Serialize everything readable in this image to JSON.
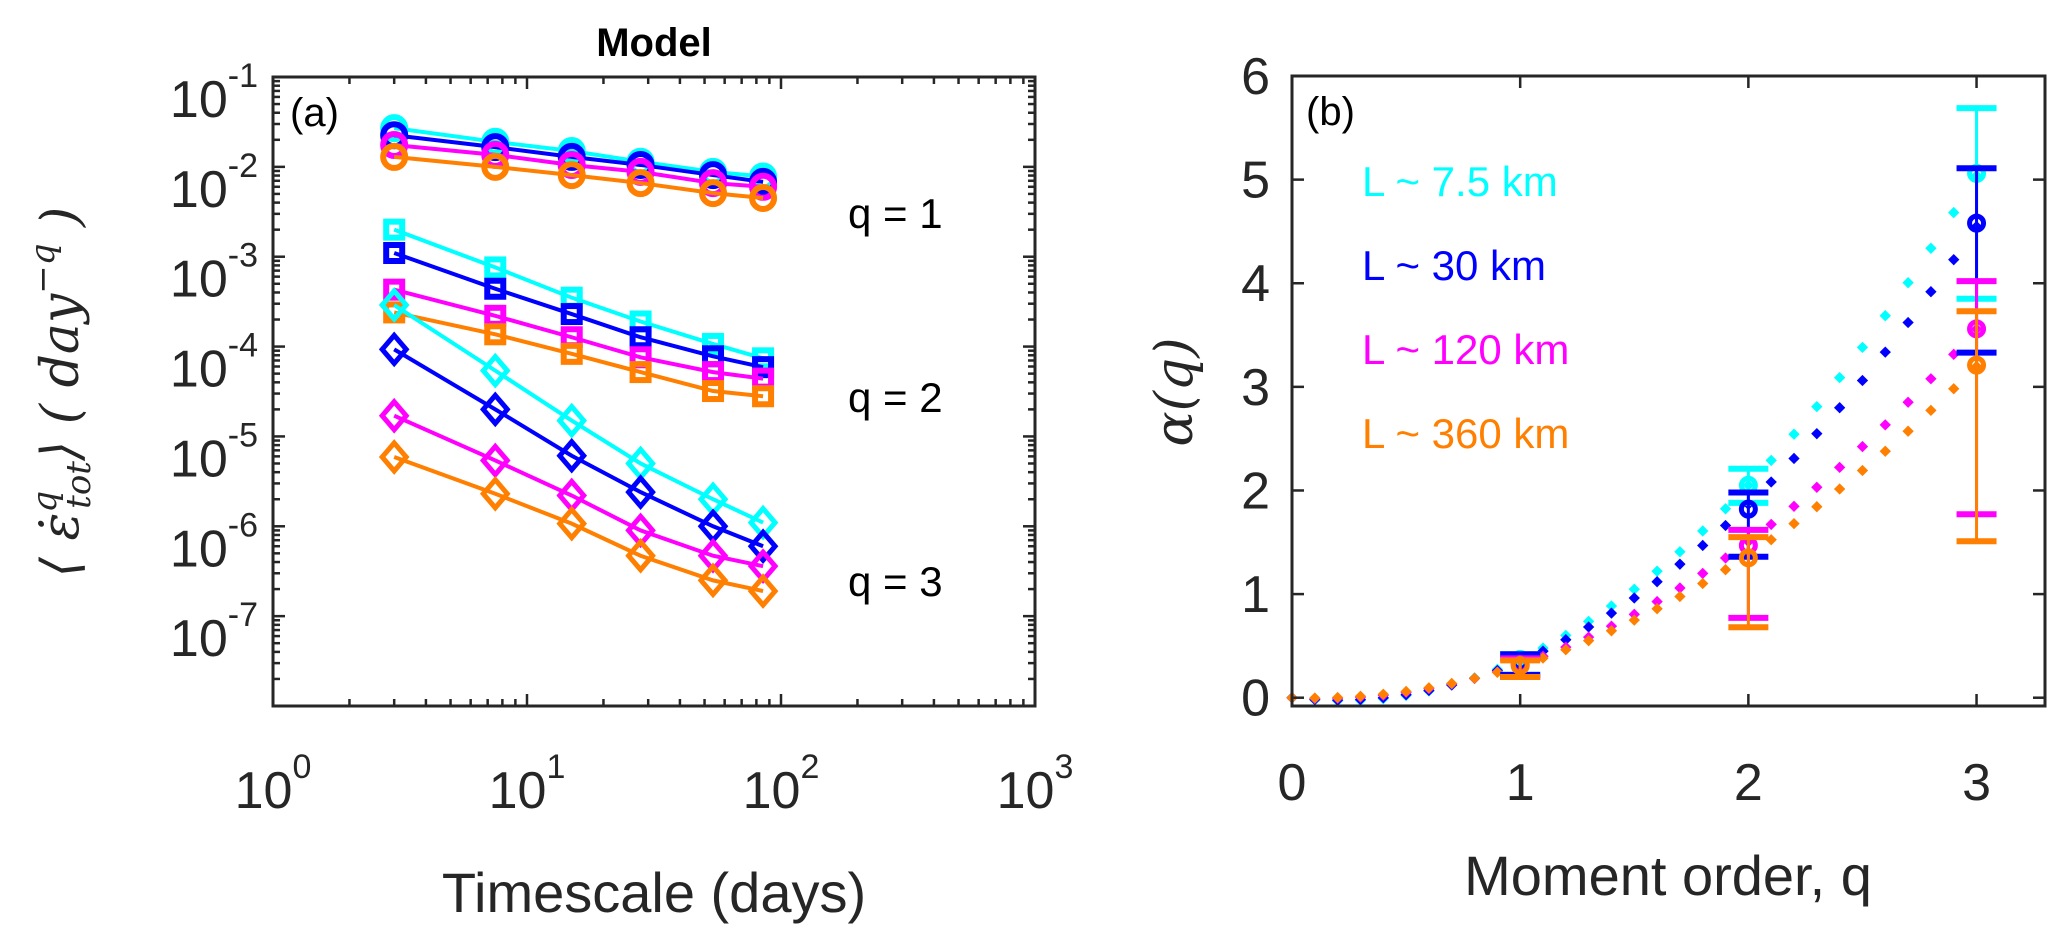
{
  "colors": {
    "axis": "#262626",
    "series": [
      "#00FFFF",
      "#0000FF",
      "#FF00FF",
      "#FF7F00"
    ]
  },
  "chart_data": [
    {
      "panel": "(a)",
      "type": "line",
      "title": "Model",
      "xlabel": "Timescale (days)",
      "ylabel": "⟨ε̇ᵠtot⟩ (day⁻ᵠ)",
      "ylabel_parts": {
        "main": "⟨ ε̇",
        "sup": "q",
        "sub": "tot",
        "close": "⟩ ( day",
        "exp": "−q",
        "end": " )"
      },
      "xscale": "log",
      "yscale": "log",
      "xlim": [
        1,
        1000
      ],
      "ylim": [
        1e-08,
        0.1
      ],
      "xticks": [
        {
          "base": "10",
          "exp": "0",
          "value": 1
        },
        {
          "base": "10",
          "exp": "1",
          "value": 10
        },
        {
          "base": "10",
          "exp": "2",
          "value": 100
        },
        {
          "base": "10",
          "exp": "3",
          "value": 1000
        }
      ],
      "yticks": [
        {
          "base": "10",
          "exp": "-1",
          "value": 0.1
        },
        {
          "base": "10",
          "exp": "-2",
          "value": 0.01
        },
        {
          "base": "10",
          "exp": "-3",
          "value": 0.001
        },
        {
          "base": "10",
          "exp": "-4",
          "value": 0.0001
        },
        {
          "base": "10",
          "exp": "-5",
          "value": 1e-05
        },
        {
          "base": "10",
          "exp": "-6",
          "value": 1e-06
        },
        {
          "base": "10",
          "exp": "-7",
          "value": 1e-07
        }
      ],
      "grid": false,
      "x": [
        3,
        7.5,
        15,
        28,
        54,
        85
      ],
      "annotations": [
        {
          "text": "(a)"
        },
        {
          "text": "q = 1",
          "y_value": 0.0035
        },
        {
          "text": "q = 2",
          "y_value": 2.8e-05
        },
        {
          "text": "q = 3",
          "y_value": 2.5e-07
        }
      ],
      "groups": [
        {
          "q": 1,
          "marker": "circle",
          "series": [
            {
              "name": "L ~ 7.5 km",
              "values": [
                0.027,
                0.019,
                0.015,
                0.0114,
                0.0088,
                0.0078
              ]
            },
            {
              "name": "L ~ 30 km",
              "values": [
                0.0225,
                0.0166,
                0.0129,
                0.0105,
                0.0081,
                0.0068
              ]
            },
            {
              "name": "L ~ 120 km",
              "values": [
                0.0175,
                0.0136,
                0.0105,
                0.0088,
                0.0066,
                0.006
              ]
            },
            {
              "name": "L ~ 360 km",
              "values": [
                0.0129,
                0.01,
                0.0081,
                0.0066,
                0.0051,
                0.0045
              ]
            }
          ]
        },
        {
          "q": 2,
          "marker": "square",
          "series": [
            {
              "name": "L ~ 7.5 km",
              "values": [
                0.002,
                0.00076,
                0.00035,
                0.00019,
                0.000107,
                7.4e-05
              ]
            },
            {
              "name": "L ~ 30 km",
              "values": [
                0.0011,
                0.00044,
                0.00023,
                0.000127,
                7.8e-05,
                5.9e-05
              ]
            },
            {
              "name": "L ~ 120 km",
              "values": [
                0.00043,
                0.00022,
                0.000127,
                7.6e-05,
                5.2e-05,
                4.4e-05
              ]
            },
            {
              "name": "L ~ 360 km",
              "values": [
                0.00024,
                0.000137,
                8.3e-05,
                5.2e-05,
                3.2e-05,
                2.8e-05
              ]
            }
          ]
        },
        {
          "q": 3,
          "marker": "diamond",
          "series": [
            {
              "name": "L ~ 7.5 km",
              "values": [
                0.00029,
                5.4e-05,
                1.5e-05,
                5e-06,
                2e-06,
                1.1e-06
              ]
            },
            {
              "name": "L ~ 30 km",
              "values": [
                9.3e-05,
                2e-05,
                6.1e-06,
                2.4e-06,
                1e-06,
                6e-07
              ]
            },
            {
              "name": "L ~ 120 km",
              "values": [
                1.7e-05,
                5.4e-06,
                2.2e-06,
                9e-07,
                4.7e-07,
                3.6e-07
              ]
            },
            {
              "name": "L ~ 360 km",
              "values": [
                5.9e-06,
                2.3e-06,
                1.07e-06,
                4.7e-07,
                2.5e-07,
                1.9e-07
              ]
            }
          ]
        }
      ]
    },
    {
      "panel": "(b)",
      "type": "scatter",
      "title": "",
      "xlabel": "Moment order, q",
      "ylabel": "α(q)",
      "xlim": [
        0,
        3.3
      ],
      "ylim": [
        -0.08,
        6
      ],
      "xticks": [
        "0",
        "1",
        "2",
        "3"
      ],
      "yticks": [
        "0",
        "1",
        "2",
        "3",
        "4",
        "5",
        "6"
      ],
      "grid": false,
      "legend_position": "top-left",
      "annotations": [
        {
          "text": "(b)"
        }
      ],
      "x": [
        1,
        2,
        3
      ],
      "series": [
        {
          "name": "L ~ 7.5 km",
          "values": [
            0.37,
            2.05,
            5.06
          ],
          "err_low": [
            0.22,
            1.88,
            3.85
          ],
          "err_high": [
            0.42,
            2.21,
            5.69
          ],
          "fit": {
            "a": 0.655,
            "b": -0.285
          }
        },
        {
          "name": "L ~ 30 km",
          "values": [
            0.35,
            1.82,
            4.58
          ],
          "err_low": [
            0.22,
            1.36,
            3.33
          ],
          "err_high": [
            0.42,
            1.98,
            5.11
          ],
          "fit": {
            "a": 0.583,
            "b": -0.233
          }
        },
        {
          "name": "L ~ 120 km",
          "values": [
            0.32,
            1.47,
            3.56
          ],
          "err_low": [
            0.2,
            0.77,
            1.77
          ],
          "err_high": [
            0.38,
            1.62,
            4.02
          ],
          "fit": {
            "a": 0.433,
            "b": -0.113
          }
        },
        {
          "name": "L ~ 360 km",
          "values": [
            0.31,
            1.35,
            3.21
          ],
          "err_low": [
            0.2,
            0.68,
            1.51
          ],
          "err_high": [
            0.36,
            1.55,
            3.73
          ],
          "fit": {
            "a": 0.378,
            "b": -0.068
          }
        }
      ]
    }
  ]
}
